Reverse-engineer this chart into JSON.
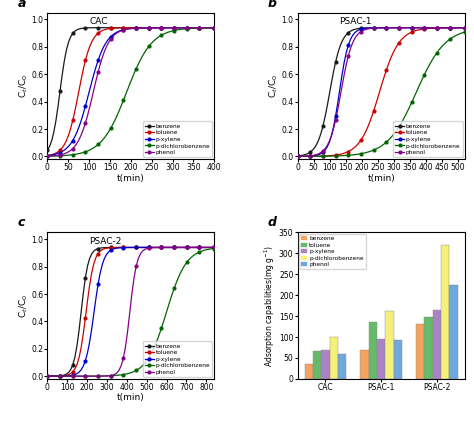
{
  "colors": {
    "benzene": "#1a1a1a",
    "toluene": "#cc0000",
    "p-xylene": "#0000cc",
    "p-dichlorobenzene": "#006600",
    "phenol": "#880088"
  },
  "species": [
    "benzene",
    "toluene",
    "p-xylene",
    "p-dichlorobenzene",
    "phenol"
  ],
  "panel_labels": [
    "a",
    "b",
    "c",
    "d"
  ],
  "panel_titles": [
    "CAC",
    "PSAC-1",
    "PSAC-2",
    ""
  ],
  "panel_a": {
    "xlabel": "t(min)",
    "ylabel": "C$_t$/C$_0$",
    "xlim": [
      0,
      400
    ],
    "ylim": [
      -0.02,
      1.05
    ],
    "xticks": [
      0,
      50,
      100,
      150,
      200,
      250,
      300,
      350,
      400
    ],
    "yticks": [
      0.0,
      0.2,
      0.4,
      0.6,
      0.8,
      1.0
    ],
    "benzene": {
      "mid": 30,
      "scale": 10
    },
    "toluene": {
      "mid": 75,
      "scale": 15
    },
    "p-xylene": {
      "mid": 100,
      "scale": 20
    },
    "p-dichlorobenzene": {
      "mid": 190,
      "scale": 30
    },
    "phenol": {
      "mid": 110,
      "scale": 18
    }
  },
  "panel_b": {
    "xlabel": "t(min)",
    "ylabel": "C$_t$/C$_0$",
    "xlim": [
      0,
      520
    ],
    "ylim": [
      -0.02,
      1.05
    ],
    "xticks": [
      0,
      50,
      100,
      150,
      200,
      250,
      300,
      350,
      400,
      450,
      500
    ],
    "yticks": [
      0.0,
      0.2,
      0.4,
      0.6,
      0.8,
      1.0
    ],
    "benzene": {
      "mid": 100,
      "scale": 18
    },
    "toluene": {
      "mid": 255,
      "scale": 30
    },
    "p-xylene": {
      "mid": 130,
      "scale": 15
    },
    "p-dichlorobenzene": {
      "mid": 370,
      "scale": 45
    },
    "phenol": {
      "mid": 135,
      "scale": 18
    }
  },
  "panel_c": {
    "xlabel": "t(min)",
    "ylabel": "C$_t$/C$_0$",
    "xlim": [
      0,
      840
    ],
    "ylim": [
      -0.02,
      1.05
    ],
    "xticks": [
      0,
      100,
      200,
      300,
      400,
      500,
      600,
      700,
      800
    ],
    "yticks": [
      0.0,
      0.2,
      0.4,
      0.6,
      0.8,
      1.0
    ],
    "benzene": {
      "mid": 170,
      "scale": 18
    },
    "toluene": {
      "mid": 195,
      "scale": 20
    },
    "p-xylene": {
      "mid": 235,
      "scale": 22
    },
    "p-dichlorobenzene": {
      "mid": 600,
      "scale": 50
    },
    "phenol": {
      "mid": 415,
      "scale": 18
    }
  },
  "panel_d": {
    "groups": [
      "CAC",
      "PSAC-1",
      "PSAC-2"
    ],
    "categories": [
      "benzene",
      "toluene",
      "p-xylene",
      "p-dichlorobenzene",
      "phenol"
    ],
    "bar_colors": [
      "#f4a460",
      "#66bb6a",
      "#ab82c5",
      "#f5f07a",
      "#6fa8dc"
    ],
    "ylabel": "Adsorption capabilities(mg g$^{-1}$)",
    "ylim": [
      0,
      350
    ],
    "yticks": [
      0,
      50,
      100,
      150,
      200,
      250,
      300,
      350
    ],
    "values": {
      "CAC": [
        35,
        67,
        70,
        100,
        59
      ],
      "PSAC-1": [
        70,
        135,
        95,
        163,
        93
      ],
      "PSAC-2": [
        130,
        149,
        165,
        320,
        225
      ]
    }
  }
}
